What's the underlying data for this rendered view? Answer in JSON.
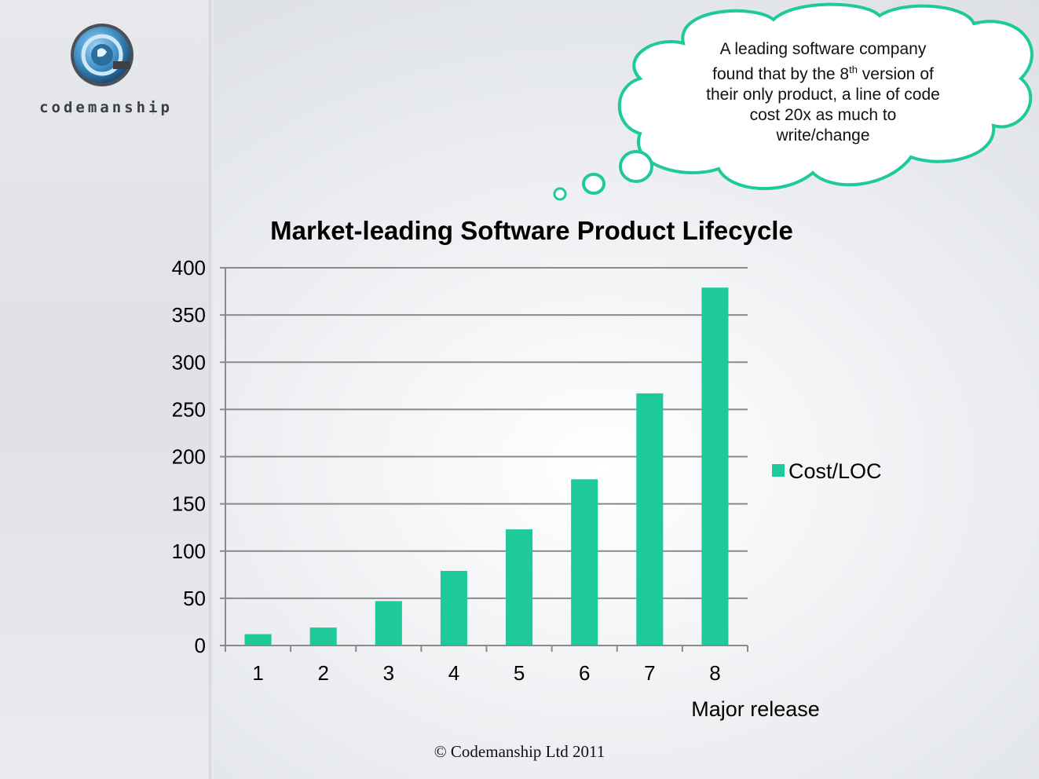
{
  "brand": {
    "name": "codemanship"
  },
  "callout": {
    "line1": "A leading software company",
    "line2_a": "found that by the 8",
    "line2_sup": "th",
    "line2_b": " version of",
    "line3": "their only product, a line of code",
    "line4": "cost 20x as much to",
    "line5": "write/change"
  },
  "footer": {
    "copyright": "© Codemanship Ltd 2011"
  },
  "colors": {
    "bar": "#1ec99a",
    "cloud_stroke": "#1ec99a",
    "grid": "#8a8a8a"
  },
  "chart_data": {
    "type": "bar",
    "title": "Market-leading Software Product Lifecycle",
    "xlabel": "Major release",
    "ylabel": "",
    "categories": [
      "1",
      "2",
      "3",
      "4",
      "5",
      "6",
      "7",
      "8"
    ],
    "series": [
      {
        "name": "Cost/LOC",
        "values": [
          12,
          19,
          47,
          79,
          123,
          176,
          267,
          379
        ]
      }
    ],
    "ylim": [
      0,
      400
    ],
    "yticks": [
      0,
      50,
      100,
      150,
      200,
      250,
      300,
      350,
      400
    ],
    "grid": true,
    "legend": "right"
  }
}
